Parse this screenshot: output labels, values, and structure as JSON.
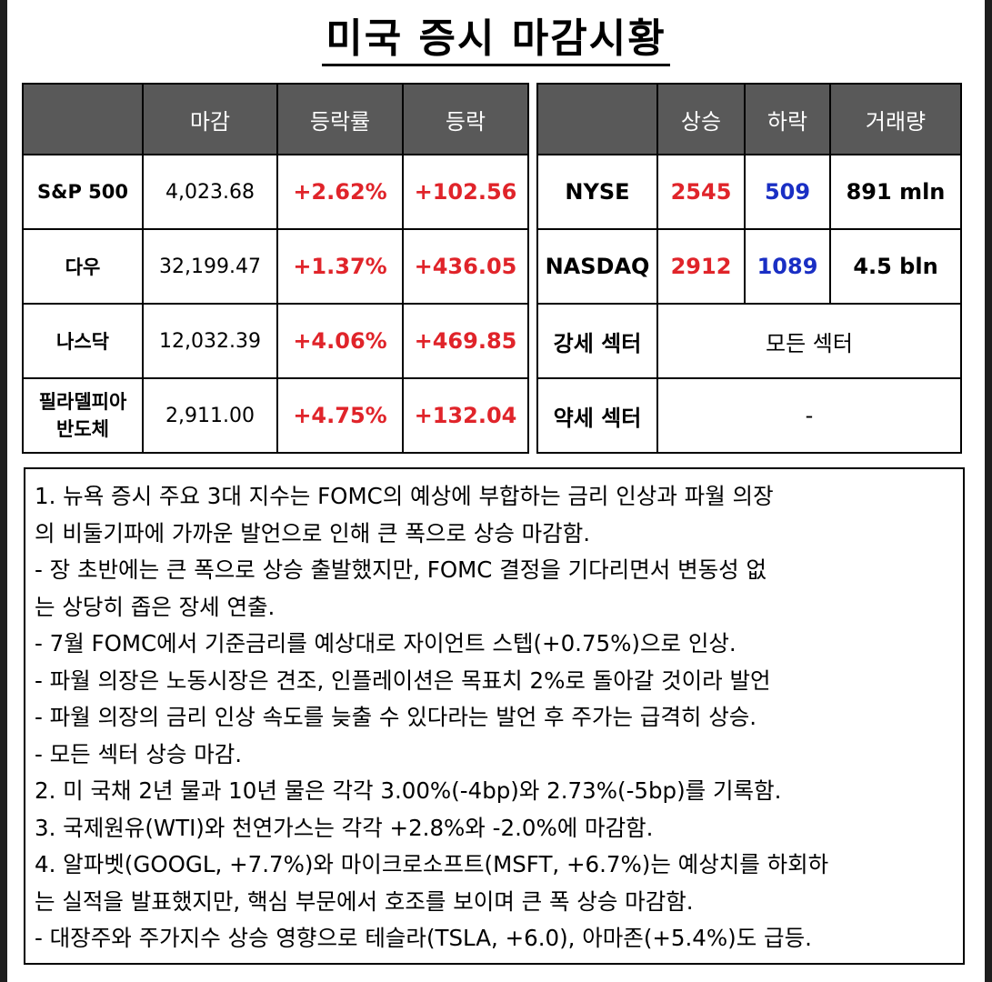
{
  "title": "미국 증시 마감시황",
  "index_table": {
    "headers": [
      "",
      "마감",
      "등락률",
      "등락"
    ],
    "rows": [
      {
        "name": "S&P 500",
        "close": "4,023.68",
        "pct": "+2.62%",
        "chg": "+102.56"
      },
      {
        "name": "다우",
        "close": "32,199.47",
        "pct": "+1.37%",
        "chg": "+436.05"
      },
      {
        "name": "나스닥",
        "close": "12,032.39",
        "pct": "+4.06%",
        "chg": "+469.85"
      },
      {
        "name": "필라델피아\n반도체",
        "close": "2,911.00",
        "pct": "+4.75%",
        "chg": "+132.04"
      }
    ]
  },
  "market_table": {
    "headers": [
      "",
      "상승",
      "하락",
      "거래량"
    ],
    "rows": [
      {
        "name": "NYSE",
        "up": "2545",
        "down": "509",
        "volume": "891 mln"
      },
      {
        "name": "NASDAQ",
        "up": "2912",
        "down": "1089",
        "volume": "4.5 bln"
      }
    ],
    "strong_sector": {
      "label": "강세 섹터",
      "value": "모든 섹터"
    },
    "weak_sector": {
      "label": "약세 섹터",
      "value": "-"
    }
  },
  "colors": {
    "up": "#e0242a",
    "down": "#1a2fc4",
    "header_bg": "#595959"
  },
  "notes": [
    "1. 뉴욕 증시 주요 3대 지수는 FOMC의 예상에 부합하는 금리 인상과 파월 의장",
    "의 비둘기파에 가까운 발언으로 인해 큰 폭으로 상승 마감함.",
    "- 장 초반에는 큰 폭으로 상승 출발했지만, FOMC 결정을 기다리면서 변동성 없",
    "는 상당히 좁은 장세 연출.",
    "- 7월 FOMC에서 기준금리를 예상대로 자이언트 스텝(+0.75%)으로 인상.",
    "- 파월 의장은 노동시장은 견조, 인플레이션은 목표치 2%로 돌아갈 것이라 발언",
    "- 파월 의장의 금리 인상 속도를 늦출 수 있다라는 발언 후 주가는 급격히 상승.",
    "- 모든 섹터 상승 마감.",
    "2. 미 국채 2년 물과 10년 물은 각각 3.00%(-4bp)와 2.73%(-5bp)를 기록함.",
    "3. 국제원유(WTI)와 천연가스는 각각 +2.8%와 -2.0%에 마감함.",
    "4. 알파벳(GOOGL, +7.7%)와 마이크로소프트(MSFT, +6.7%)는 예상치를 하회하",
    "는 실적을 발표했지만, 핵심 부문에서 호조를 보이며 큰 폭 상승 마감함.",
    "- 대장주와 주가지수 상승 영향으로 테슬라(TSLA, +6.0), 아마존(+5.4%)도 급등."
  ]
}
